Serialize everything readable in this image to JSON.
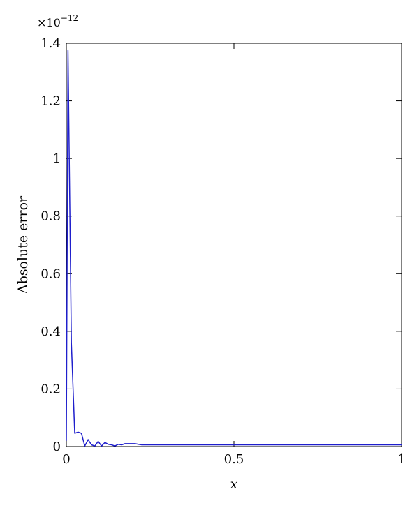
{
  "chart_data": {
    "type": "line",
    "xlabel": "x",
    "ylabel": "Absolute error",
    "y_exponent_label": "×10",
    "y_exponent_power": "−12",
    "xlim": [
      0,
      1
    ],
    "ylim": [
      0,
      1.4
    ],
    "x_ticks": [
      0,
      0.5,
      1
    ],
    "x_tick_labels": [
      "0",
      "0.5",
      "1"
    ],
    "y_ticks": [
      0,
      0.2,
      0.4,
      0.6,
      0.8,
      1.0,
      1.2,
      1.4
    ],
    "y_tick_labels": [
      "0",
      "0.2",
      "0.4",
      "0.6",
      "0.8",
      "1",
      "1.2",
      "1.4"
    ],
    "grid": false,
    "series": [
      {
        "color": "#1f1fcc",
        "x": [
          0.0,
          0.005,
          0.015,
          0.025,
          0.035,
          0.045,
          0.055,
          0.065,
          0.075,
          0.085,
          0.095,
          0.105,
          0.115,
          0.125,
          0.135,
          0.145,
          0.155,
          0.165,
          0.175,
          0.185,
          0.195,
          0.205,
          0.215,
          0.225,
          0.235,
          0.25,
          0.35,
          0.5,
          0.6,
          0.75,
          0.9,
          1.0
        ],
        "y": [
          0.02,
          1.375,
          0.36,
          0.046,
          0.05,
          0.046,
          0.002,
          0.024,
          0.006,
          0.002,
          0.018,
          0.002,
          0.014,
          0.008,
          0.006,
          0.002,
          0.008,
          0.006,
          0.01,
          0.01,
          0.01,
          0.01,
          0.008,
          0.006,
          0.006,
          0.006,
          0.006,
          0.006,
          0.006,
          0.006,
          0.006,
          0.006
        ]
      }
    ]
  }
}
